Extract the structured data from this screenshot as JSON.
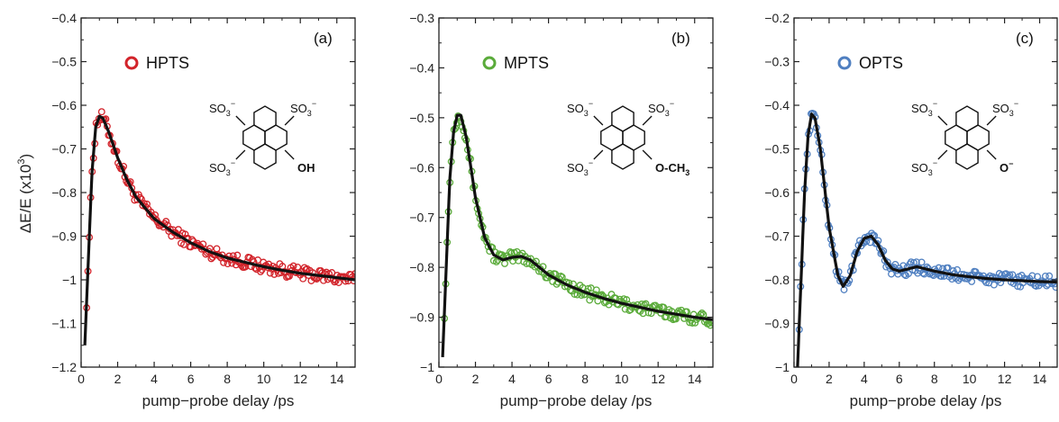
{
  "figure": {
    "ylabel": "ΔE/E (x10",
    "ylabel_sup": "3",
    "ylabel_close": ")",
    "colors": {
      "fit": "#111111",
      "axis": "#222222"
    }
  },
  "chart_data": [
    {
      "type": "scatter",
      "panel_label": "(a)",
      "xlabel": "pump−probe delay /ps",
      "ylabel": "ΔE/E (x10^3)",
      "xlim": [
        0,
        15
      ],
      "ylim": [
        -1.2,
        -0.4
      ],
      "xticks": [
        0,
        2,
        4,
        6,
        8,
        10,
        12,
        14
      ],
      "xtick_labels": [
        "0",
        "2",
        "4",
        "6",
        "8",
        "10",
        "12",
        "14"
      ],
      "yticks": [
        -1.2,
        -1.1,
        -1.0,
        -0.9,
        -0.8,
        -0.7,
        -0.6,
        -0.5,
        -0.4
      ],
      "ytick_labels": [
        "−1.2",
        "−1.1",
        "−1",
        "−0.9",
        "−0.8",
        "−0.7",
        "−0.6",
        "−0.5",
        "−0.4"
      ],
      "legend": {
        "marker": "O",
        "label": "HPTS",
        "placement": "top-left"
      },
      "color": "#d2232a",
      "molecule": {
        "group_top_left": "SO",
        "group_top_right": "SO",
        "group_bottom_left": "SO",
        "sub": "3",
        "sup": "−",
        "substituent": "OH"
      },
      "series": [
        {
          "name": "HPTS",
          "x": [
            0.2,
            0.4,
            0.6,
            0.8,
            1.0,
            1.2,
            1.5,
            2.0,
            2.5,
            3.0,
            4.0,
            5.0,
            6.0,
            7.0,
            8.0,
            9.0,
            10.0,
            11.0,
            12.0,
            13.0,
            14.0,
            15.0
          ],
          "y": [
            -1.15,
            -0.95,
            -0.75,
            -0.65,
            -0.625,
            -0.63,
            -0.66,
            -0.72,
            -0.77,
            -0.81,
            -0.86,
            -0.89,
            -0.915,
            -0.935,
            -0.95,
            -0.96,
            -0.97,
            -0.978,
            -0.985,
            -0.99,
            -0.995,
            -1.0
          ]
        }
      ]
    },
    {
      "type": "scatter",
      "panel_label": "(b)",
      "xlabel": "pump−probe delay /ps",
      "ylabel": "ΔE/E (x10^3)",
      "xlim": [
        0,
        15
      ],
      "ylim": [
        -1.0,
        -0.3
      ],
      "xticks": [
        0,
        2,
        4,
        6,
        8,
        10,
        12,
        14
      ],
      "xtick_labels": [
        "0",
        "2",
        "4",
        "6",
        "8",
        "10",
        "12",
        "14"
      ],
      "yticks": [
        -1.0,
        -0.9,
        -0.8,
        -0.7,
        -0.6,
        -0.5,
        -0.4,
        -0.3
      ],
      "ytick_labels": [
        "−1",
        "−0.9",
        "−0.8",
        "−0.7",
        "−0.6",
        "−0.5",
        "−0.4",
        "−0.3"
      ],
      "legend": {
        "marker": "O",
        "label": "MPTS",
        "placement": "top-left"
      },
      "color": "#5aab3a",
      "molecule": {
        "group_top_left": "SO",
        "group_top_right": "SO",
        "group_bottom_left": "SO",
        "sub": "3",
        "sup": "−",
        "substituent": "O-CH",
        "substituent_sub": "3"
      },
      "series": [
        {
          "name": "MPTS",
          "x": [
            0.2,
            0.4,
            0.6,
            0.8,
            1.0,
            1.2,
            1.5,
            2.0,
            2.5,
            3.0,
            3.5,
            4.0,
            4.5,
            5.0,
            5.5,
            6.0,
            7.0,
            8.0,
            9.0,
            10.0,
            11.0,
            12.0,
            13.0,
            14.0,
            15.0
          ],
          "y": [
            -0.98,
            -0.8,
            -0.62,
            -0.53,
            -0.495,
            -0.495,
            -0.54,
            -0.66,
            -0.74,
            -0.775,
            -0.785,
            -0.78,
            -0.778,
            -0.785,
            -0.8,
            -0.815,
            -0.835,
            -0.85,
            -0.862,
            -0.872,
            -0.88,
            -0.888,
            -0.894,
            -0.9,
            -0.905
          ]
        }
      ]
    },
    {
      "type": "scatter",
      "panel_label": "(c)",
      "xlabel": "pump−probe delay /ps",
      "ylabel": "ΔE/E (x10^3)",
      "xlim": [
        0,
        15
      ],
      "ylim": [
        -1.0,
        -0.2
      ],
      "xticks": [
        0,
        2,
        4,
        6,
        8,
        10,
        12,
        14
      ],
      "xtick_labels": [
        "0",
        "2",
        "4",
        "6",
        "8",
        "10",
        "12",
        "14"
      ],
      "yticks": [
        -1.0,
        -0.9,
        -0.8,
        -0.7,
        -0.6,
        -0.5,
        -0.4,
        -0.3,
        -0.2
      ],
      "ytick_labels": [
        "−1",
        "−0.9",
        "−0.8",
        "−0.7",
        "−0.6",
        "−0.5",
        "−0.4",
        "−0.3",
        "−0.2"
      ],
      "legend": {
        "marker": "O",
        "label": "OPTS",
        "placement": "top-left"
      },
      "color": "#4f7fc0",
      "molecule": {
        "group_top_left": "SO",
        "group_top_right": "SO",
        "group_bottom_left": "SO",
        "sub": "3",
        "sup": "−",
        "substituent": "O",
        "substituent_sup": "−"
      },
      "series": [
        {
          "name": "OPTS",
          "x": [
            0.2,
            0.4,
            0.6,
            0.8,
            1.0,
            1.2,
            1.5,
            2.0,
            2.5,
            2.8,
            3.2,
            3.6,
            4.0,
            4.4,
            4.8,
            5.2,
            5.6,
            6.0,
            6.5,
            7.0,
            8.0,
            9.0,
            10.0,
            11.0,
            12.0,
            13.0,
            14.0,
            15.0
          ],
          "y": [
            -1.0,
            -0.8,
            -0.6,
            -0.47,
            -0.42,
            -0.43,
            -0.5,
            -0.68,
            -0.79,
            -0.815,
            -0.79,
            -0.735,
            -0.705,
            -0.7,
            -0.72,
            -0.755,
            -0.775,
            -0.78,
            -0.775,
            -0.77,
            -0.78,
            -0.788,
            -0.793,
            -0.797,
            -0.8,
            -0.802,
            -0.804,
            -0.805
          ]
        }
      ]
    }
  ]
}
